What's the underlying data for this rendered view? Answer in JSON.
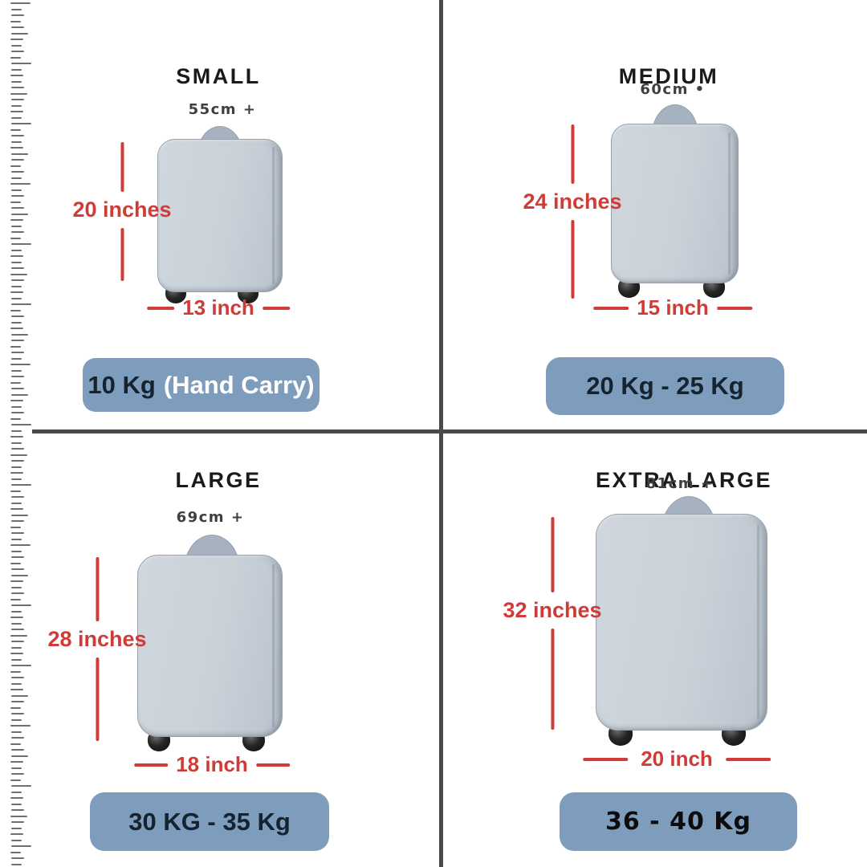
{
  "image": {
    "type": "luggage-size-comparison-chart"
  },
  "colors": {
    "accent_red": "#cf3c38",
    "badge_blue": "#7e9dbd",
    "badge_text_dark": "#15222f",
    "badge_text_light": "#ffffff",
    "divider_gray": "#4a4a4a",
    "case_fill": "#c9d1d9",
    "handle_fill": "#a6b2c0",
    "title_black": "#1a1a1a"
  },
  "quadrants": [
    {
      "id": "small",
      "title": "SMALL",
      "cm_label": "55cm +",
      "height_label": "20 inches",
      "width_label": "13 inch",
      "weight_primary": "10 Kg",
      "weight_secondary": "(Hand Carry)"
    },
    {
      "id": "medium",
      "title": "MEDIUM",
      "cm_label": "60cm •",
      "height_label": "24 inches",
      "width_label": "15 inch",
      "weight_primary": "20 Kg - 25 Kg",
      "weight_secondary": ""
    },
    {
      "id": "large",
      "title": "LARGE",
      "cm_label": "69cm +",
      "height_label": "28 inches",
      "width_label": "18 inch",
      "weight_primary": "30 KG - 35 Kg",
      "weight_secondary": ""
    },
    {
      "id": "extra_large",
      "title": "EXTRA LARGE",
      "cm_label": "81cm +",
      "height_label": "32 inches",
      "width_label": "20 inch",
      "weight_primary": "36 - 40 Kg",
      "weight_secondary": ""
    }
  ]
}
